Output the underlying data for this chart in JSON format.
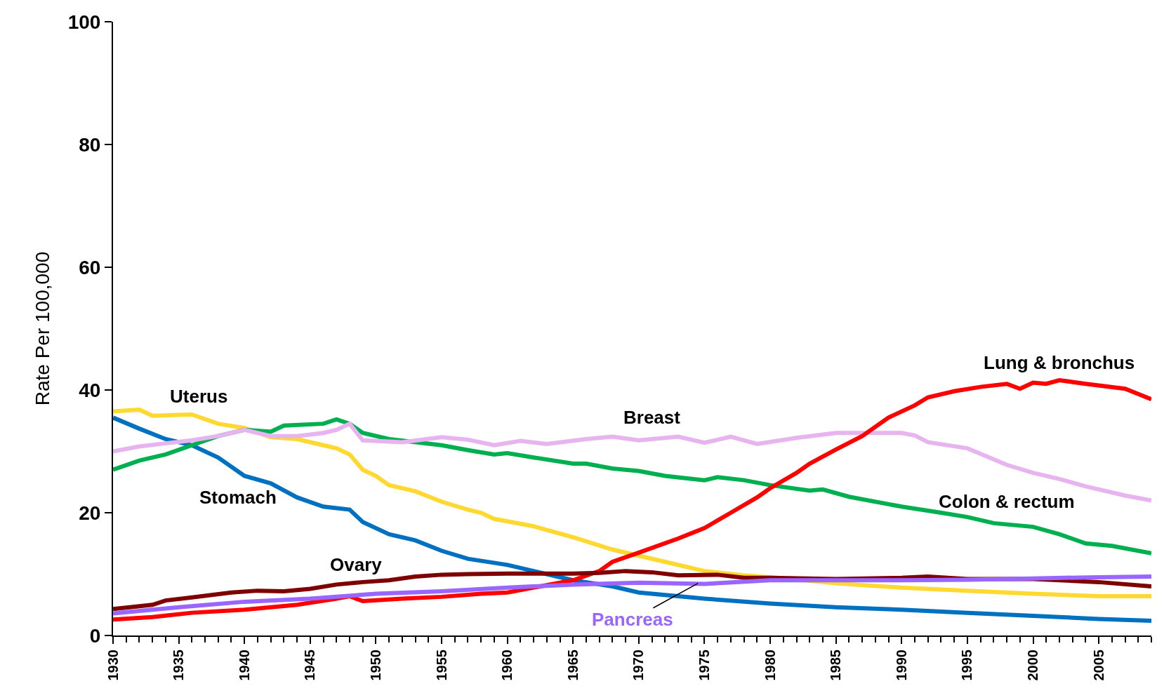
{
  "chart_data": {
    "type": "line",
    "ylabel": "Rate Per 100,000",
    "xlim": [
      1930,
      2009
    ],
    "xticks": [
      1930,
      1935,
      1940,
      1945,
      1950,
      1955,
      1960,
      1965,
      1970,
      1975,
      1980,
      1985,
      1990,
      1995,
      2000,
      2005
    ],
    "ylim": [
      0,
      100
    ],
    "yticks": [
      0,
      20,
      40,
      60,
      80,
      100
    ],
    "legend": false,
    "marker": "none",
    "line_style": "solid",
    "series": [
      {
        "name": "Stomach",
        "color": "#0070c0",
        "x": [
          1930,
          1932,
          1934,
          1936,
          1938,
          1940,
          1942,
          1944,
          1946,
          1948,
          1949,
          1951,
          1953,
          1955,
          1957,
          1960,
          1962,
          1965,
          1968,
          1970,
          1975,
          1980,
          1985,
          1990,
          1995,
          2000,
          2005,
          2009
        ],
        "values": [
          35.5,
          33.7,
          32,
          31,
          29,
          26,
          24.8,
          22.5,
          21,
          20.5,
          18.5,
          16.5,
          15.5,
          13.8,
          12.5,
          11.5,
          10.5,
          9,
          8,
          7,
          6,
          5.2,
          4.6,
          4.2,
          3.7,
          3.2,
          2.7,
          2.4
        ]
      },
      {
        "name": "Uterus",
        "color": "#ffd92f",
        "x": [
          1930,
          1932,
          1933,
          1936,
          1938,
          1940,
          1942,
          1944,
          1946,
          1947,
          1948,
          1949,
          1950,
          1951,
          1953,
          1955,
          1957,
          1958,
          1959,
          1962,
          1965,
          1968,
          1970,
          1972,
          1975,
          1978,
          1980,
          1985,
          1990,
          1995,
          2000,
          2005,
          2009
        ],
        "values": [
          36.5,
          36.8,
          35.8,
          36,
          34.5,
          33.8,
          32.3,
          32,
          31,
          30.5,
          29.5,
          27,
          26,
          24.5,
          23.5,
          21.8,
          20.5,
          20,
          19,
          17.8,
          16,
          14,
          13,
          12,
          10.5,
          9.8,
          9.5,
          8.5,
          7.8,
          7.3,
          6.8,
          6.4,
          6.4
        ]
      },
      {
        "name": "Colon & rectum",
        "color": "#00b050",
        "x": [
          1930,
          1932,
          1934,
          1936,
          1938,
          1940,
          1942,
          1943,
          1946,
          1947,
          1948,
          1949,
          1951,
          1955,
          1957,
          1959,
          1960,
          1962,
          1965,
          1966,
          1968,
          1970,
          1972,
          1975,
          1976,
          1978,
          1980,
          1983,
          1984,
          1986,
          1990,
          1993,
          1995,
          1997,
          2000,
          2002,
          2004,
          2006,
          2009
        ],
        "values": [
          27,
          28.5,
          29.5,
          31,
          32.5,
          33.5,
          33.2,
          34.2,
          34.5,
          35.2,
          34.5,
          33,
          32,
          31,
          30.2,
          29.5,
          29.7,
          29,
          28,
          28,
          27.2,
          26.8,
          26,
          25.3,
          25.8,
          25.3,
          24.5,
          23.6,
          23.8,
          22.6,
          21,
          20,
          19.3,
          18.3,
          17.7,
          16.5,
          15,
          14.6,
          13.4
        ]
      },
      {
        "name": "Breast",
        "color": "#e8b4f0",
        "x": [
          1930,
          1932,
          1934,
          1936,
          1938,
          1940,
          1942,
          1944,
          1946,
          1947,
          1948,
          1949,
          1952,
          1955,
          1957,
          1959,
          1961,
          1963,
          1966,
          1968,
          1970,
          1973,
          1975,
          1977,
          1979,
          1982,
          1985,
          1987,
          1990,
          1991,
          1992,
          1995,
          1998,
          2000,
          2002,
          2004,
          2007,
          2009
        ],
        "values": [
          30,
          30.8,
          31.3,
          31.8,
          32.5,
          33.5,
          32.5,
          32.5,
          33,
          33.5,
          34.5,
          31.8,
          31.5,
          32.3,
          31.9,
          31,
          31.7,
          31.2,
          32,
          32.4,
          31.8,
          32.4,
          31.4,
          32.4,
          31.2,
          32.2,
          33,
          33,
          33,
          32.6,
          31.5,
          30.5,
          27.8,
          26.5,
          25.5,
          24.3,
          22.8,
          22
        ]
      },
      {
        "name": "Lung & bronchus",
        "color": "#ff0000",
        "x": [
          1930,
          1933,
          1936,
          1940,
          1944,
          1947,
          1948,
          1949,
          1952,
          1955,
          1958,
          1960,
          1963,
          1965,
          1967,
          1968,
          1970,
          1973,
          1975,
          1977,
          1979,
          1980,
          1982,
          1983,
          1985,
          1987,
          1989,
          1991,
          1992,
          1994,
          1996,
          1998,
          1999,
          2000,
          2001,
          2002,
          2004,
          2007,
          2009
        ],
        "values": [
          2.6,
          3,
          3.7,
          4.2,
          5,
          6,
          6.4,
          5.6,
          6,
          6.3,
          6.8,
          7,
          8.2,
          9,
          10.5,
          12,
          13.5,
          15.8,
          17.5,
          20,
          22.5,
          24,
          26.5,
          28,
          30.3,
          32.5,
          35.5,
          37.5,
          38.8,
          39.8,
          40.5,
          41,
          40.2,
          41.2,
          41,
          41.6,
          41,
          40.2,
          38.5
        ]
      },
      {
        "name": "Ovary",
        "color": "#7f0000",
        "x": [
          1930,
          1933,
          1934,
          1936,
          1939,
          1941,
          1943,
          1945,
          1947,
          1949,
          1951,
          1953,
          1955,
          1957,
          1960,
          1963,
          1965,
          1967,
          1969,
          1971,
          1973,
          1976,
          1978,
          1980,
          1985,
          1990,
          1992,
          1995,
          2000,
          2005,
          2009
        ],
        "values": [
          4.3,
          5,
          5.7,
          6.2,
          7,
          7.3,
          7.2,
          7.6,
          8.3,
          8.7,
          9,
          9.6,
          9.9,
          10,
          10.1,
          10.1,
          10.1,
          10.2,
          10.5,
          10.3,
          9.8,
          9.9,
          9.4,
          9.4,
          9.2,
          9.4,
          9.6,
          9.2,
          9.2,
          8.7,
          8
        ]
      },
      {
        "name": "Pancreas",
        "color": "#9966ff",
        "x": [
          1930,
          1935,
          1940,
          1945,
          1950,
          1955,
          1960,
          1965,
          1970,
          1975,
          1980,
          1985,
          1990,
          1995,
          2000,
          2005,
          2009
        ],
        "values": [
          3.6,
          4.6,
          5.5,
          6,
          6.8,
          7.2,
          7.8,
          8.3,
          8.6,
          8.4,
          9,
          9,
          9,
          9.1,
          9.3,
          9.5,
          9.6
        ]
      }
    ]
  }
}
